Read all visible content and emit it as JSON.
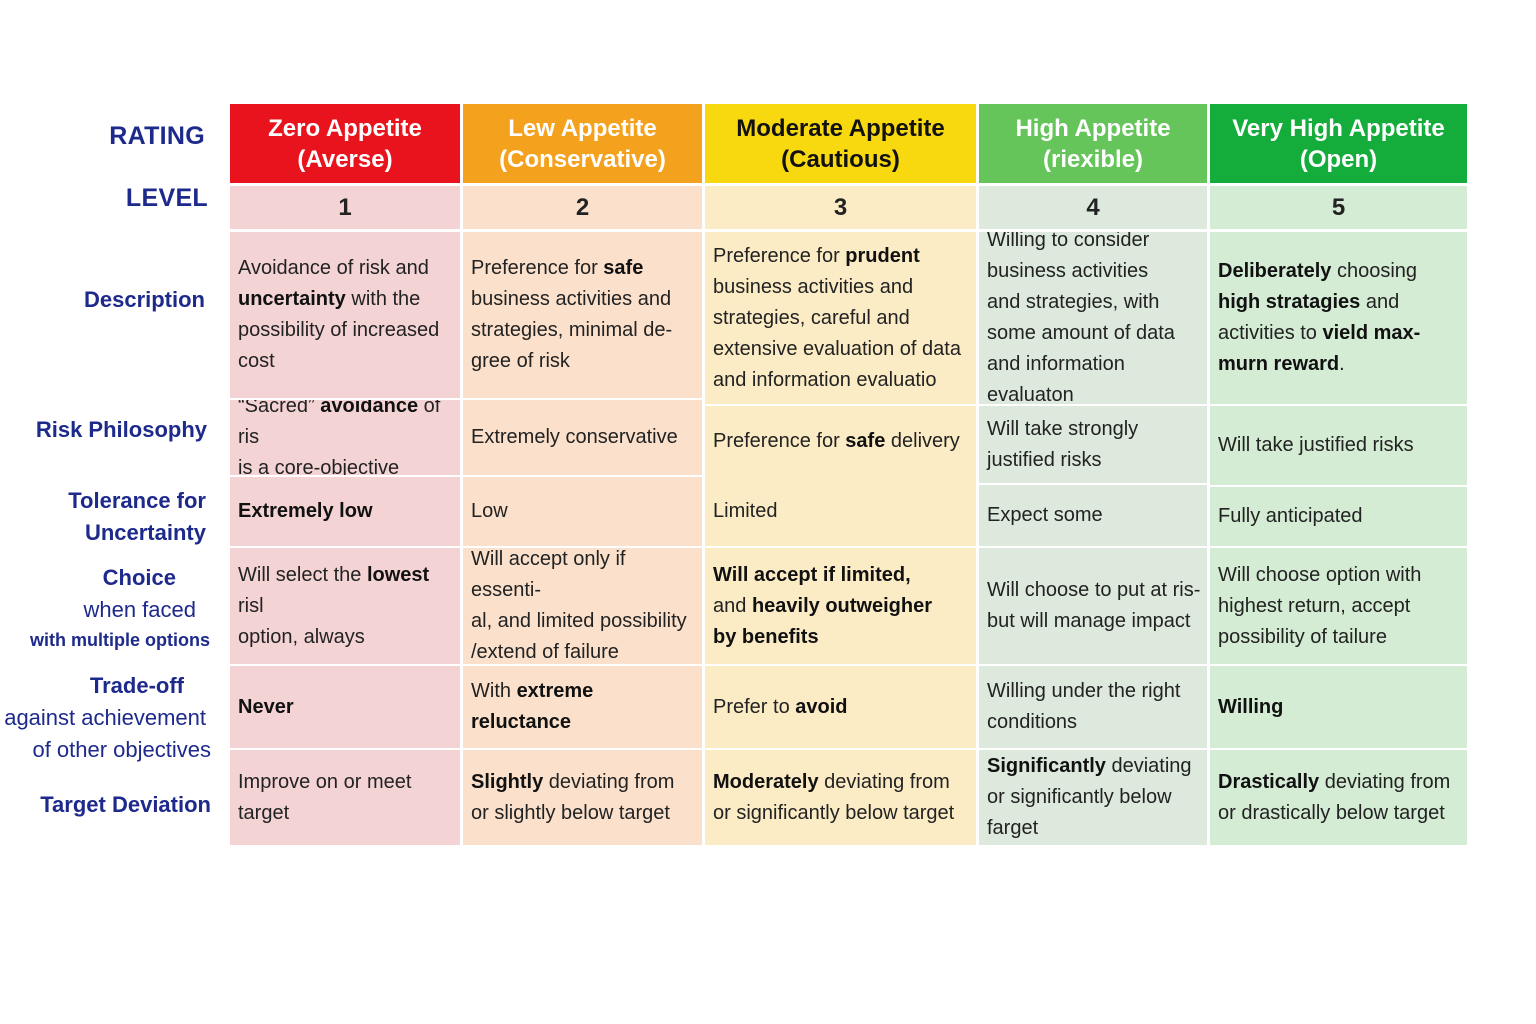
{
  "row_labels": {
    "rating": "RATING",
    "level": "LEVEL",
    "description": "Description",
    "risk_philosophy": "Risk Philosophy",
    "tolerance": [
      "Tolerance for",
      "Uncertainty"
    ],
    "choice": [
      "Choice",
      "when faced",
      "with multiple options"
    ],
    "tradeoff": [
      "Trade-off",
      "against achievement",
      "of other objectives"
    ],
    "target_deviation": "Target Deviation"
  },
  "columns": [
    {
      "color": "#e8131c",
      "tint": "#f4d3d4",
      "textColor": "#ffffff",
      "heading": [
        "Zero Appetite",
        "(Averse)"
      ],
      "level": "1",
      "description": [
        [
          "Avoidance of risk and"
        ],
        [
          "<b>uncertainty</b>",
          " with the"
        ],
        [
          "possibility of increased cost"
        ]
      ],
      "philosophy": [
        [
          "“Sacred” ",
          "<b>avoidance</b>",
          " of ris"
        ],
        [
          "is a core-objective"
        ]
      ],
      "tolerance": [
        [
          "<b>Extremely low</b>"
        ]
      ],
      "choice": [
        [
          "Will select the ",
          "<b>lowest</b>",
          " risl"
        ],
        [
          "option, always"
        ]
      ],
      "tradeoff": [
        [
          "<b>Never</b>"
        ]
      ],
      "deviation": [
        [
          "Improve on or meet target"
        ]
      ]
    },
    {
      "color": "#f4a11d",
      "tint": "#fbe1cc",
      "textColor": "#ffffff",
      "heading": [
        "Lew Appetite",
        "(Conservative)"
      ],
      "level": "2",
      "description": [
        [
          "Preference for ",
          "<b>safe</b>"
        ],
        [
          "business activities and"
        ],
        [
          "strategies, minimal de-"
        ],
        [
          "gree of risk"
        ]
      ],
      "philosophy": [
        [
          "Extremely conservative"
        ]
      ],
      "tolerance": [
        [
          "Low"
        ]
      ],
      "choice": [
        [
          "Will accept only if essenti-"
        ],
        [
          "al, and limited possibility"
        ],
        [
          "/extend of failure"
        ]
      ],
      "tradeoff": [
        [
          "With ",
          "<b>extreme reluctance</b>"
        ]
      ],
      "deviation": [
        [
          "<b>Slightly</b>",
          " deviating from"
        ],
        [
          "or slightly below target"
        ]
      ]
    },
    {
      "color": "#f8d90f",
      "tint": "#fbecc6",
      "textColor": "#111111",
      "heading": [
        "Moderate Appetite",
        "(Cautious)"
      ],
      "level": "3",
      "description": [
        [
          "Preference for ",
          "<b>prudent</b>"
        ],
        [
          "business activities and"
        ],
        [
          "strategies, careful and"
        ],
        [
          "extensive evaluation of data"
        ],
        [
          "and information evaluatio"
        ]
      ],
      "philosophy": [
        [
          "Preference for ",
          "<b>safe</b>",
          " delivery"
        ]
      ],
      "tolerance": [
        [
          "Limited"
        ]
      ],
      "choice": [
        [
          "<b>Will accept if limited,</b>"
        ],
        [
          "and ",
          "<b>heavily outweigher</b>"
        ],
        [
          "<b>by benefits</b>"
        ]
      ],
      "tradeoff": [
        [
          "Prefer to ",
          "<b>avoid</b>"
        ]
      ],
      "deviation": [
        [
          "<b>Moderately</b>",
          " deviating from"
        ],
        [
          "or significantly below target"
        ]
      ]
    },
    {
      "color": "#66c55a",
      "tint": "#dde9dd",
      "textColor": "#ffffff",
      "heading": [
        "High Appetite",
        "(riexible)"
      ],
      "level": "4",
      "description": [
        [
          "Willing to consider"
        ],
        [
          "business activities"
        ],
        [
          "and strategies, with"
        ],
        [
          "some amount of data"
        ],
        [
          "and information evaluaton"
        ]
      ],
      "philosophy": [
        [
          "Will take strongly"
        ],
        [
          "justified risks"
        ]
      ],
      "tolerance": [
        [
          "Expect some"
        ]
      ],
      "choice": [
        [
          "Will choose to put at ris-"
        ],
        [
          "but will manage impact"
        ]
      ],
      "tradeoff": [
        [
          "Willing under the right"
        ],
        [
          "conditions"
        ]
      ],
      "deviation": [
        [
          "<b>Significantly</b>",
          " deviating"
        ],
        [
          "or significantly below farget"
        ]
      ]
    },
    {
      "color": "#14ad3c",
      "tint": "#d4ebd4",
      "textColor": "#ffffff",
      "heading": [
        "Very High Appetite",
        "(Open)"
      ],
      "level": "5",
      "description": [
        [
          "<b>Deliberately</b>",
          " choosing"
        ],
        [
          "<b>high stratagies</b>",
          " and"
        ],
        [
          "activities to ",
          "<b>vield max-</b>"
        ],
        [
          "<b>murn reward</b>",
          "."
        ]
      ],
      "philosophy": [
        [
          "Will take justified risks"
        ]
      ],
      "tolerance": [
        [
          "Fully anticipated"
        ]
      ],
      "choice": [
        [
          "Will choose option with"
        ],
        [
          "highest return, accept"
        ],
        [
          "possibility of tailure"
        ]
      ],
      "tradeoff": [
        [
          "<b>Willing</b>"
        ]
      ],
      "deviation": [
        [
          "<b>Drastically</b>",
          " deviating from"
        ],
        [
          "or drastically below target"
        ]
      ]
    }
  ]
}
